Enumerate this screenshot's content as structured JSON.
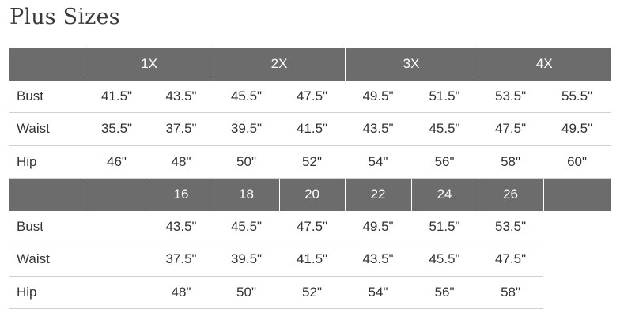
{
  "page": {
    "title": "Plus Sizes"
  },
  "plus": {
    "headers": [
      "1X",
      "2X",
      "3X",
      "4X"
    ],
    "rows": [
      {
        "label": "Bust",
        "values": [
          "41.5\"",
          "43.5\"",
          "45.5\"",
          "47.5\"",
          "49.5\"",
          "51.5\"",
          "53.5\"",
          "55.5\""
        ]
      },
      {
        "label": "Waist",
        "values": [
          "35.5\"",
          "37.5\"",
          "39.5\"",
          "41.5\"",
          "43.5\"",
          "45.5\"",
          "47.5\"",
          "49.5\""
        ]
      },
      {
        "label": "Hip",
        "values": [
          "46\"",
          "48\"",
          "50\"",
          "52\"",
          "54\"",
          "56\"",
          "58\"",
          "60\""
        ]
      }
    ]
  },
  "numeric": {
    "headers": [
      "16",
      "18",
      "20",
      "22",
      "24",
      "26"
    ],
    "rows": [
      {
        "label": "Bust",
        "values": [
          "43.5\"",
          "45.5\"",
          "47.5\"",
          "49.5\"",
          "51.5\"",
          "53.5\""
        ]
      },
      {
        "label": "Waist",
        "values": [
          "37.5\"",
          "39.5\"",
          "41.5\"",
          "43.5\"",
          "45.5\"",
          "47.5\""
        ]
      },
      {
        "label": "Hip",
        "values": [
          "48\"",
          "50\"",
          "52\"",
          "54\"",
          "56\"",
          "58\""
        ]
      }
    ]
  },
  "colors": {
    "header_bg": "#6c6c6c",
    "header_text": "#ffffff",
    "row_line": "#d0d0d0",
    "text": "#333333"
  }
}
